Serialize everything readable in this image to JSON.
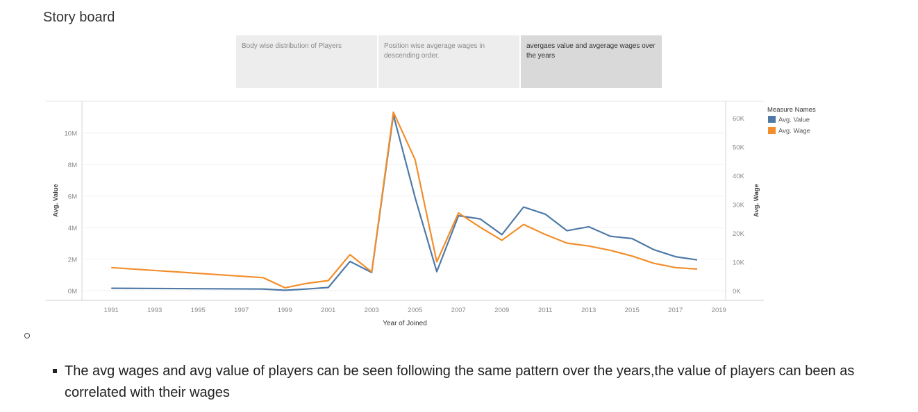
{
  "story": {
    "title": "Story board"
  },
  "tabs": [
    {
      "label": "Body wise distribution of Players",
      "active": false
    },
    {
      "label": "Position wise avgerage wages in descending order.",
      "active": false
    },
    {
      "label": "avergaes value and avgerage wages over the years",
      "active": true
    }
  ],
  "chart_data": {
    "type": "line",
    "xlabel": "Year of Joined",
    "x": [
      1991,
      1998,
      1999,
      2000,
      2001,
      2002,
      2003,
      2004,
      2005,
      2006,
      2007,
      2008,
      2009,
      2010,
      2011,
      2012,
      2013,
      2014,
      2015,
      2016,
      2017,
      2018
    ],
    "x_ticks": [
      "1991",
      "1993",
      "1995",
      "1997",
      "1999",
      "2001",
      "2003",
      "2005",
      "2007",
      "2009",
      "2011",
      "2013",
      "2015",
      "2017",
      "2019"
    ],
    "xlim": [
      1988,
      2020
    ],
    "series": [
      {
        "name": "Avg. Value",
        "axis": "left",
        "color": "#4e79a7",
        "values": [
          150000,
          100000,
          20000,
          100000,
          200000,
          1850000,
          1150000,
          11150000,
          5900000,
          1200000,
          4750000,
          4550000,
          3550000,
          5300000,
          4850000,
          3800000,
          4050000,
          3450000,
          3300000,
          2600000,
          2150000,
          1950000
        ]
      },
      {
        "name": "Avg. Wage",
        "axis": "right",
        "color": "#f28e2b",
        "values": [
          8000,
          4500,
          1000,
          2500,
          3500,
          12500,
          6500,
          62000,
          45500,
          10000,
          27000,
          22000,
          17500,
          23000,
          19500,
          16500,
          15500,
          14000,
          12000,
          9500,
          8000,
          7500
        ]
      }
    ],
    "y_left": {
      "label": "Avg. Value",
      "lim": [
        0,
        11500000
      ],
      "ticks": [
        "0M",
        "2M",
        "4M",
        "6M",
        "8M",
        "10M"
      ]
    },
    "y_right": {
      "label": "Avg. Wage",
      "lim": [
        0,
        63000
      ],
      "ticks": [
        "0K",
        "10K",
        "20K",
        "30K",
        "40K",
        "50K",
        "60K"
      ]
    },
    "legend": {
      "title": "Measure Names",
      "items": [
        "Avg. Value",
        "Avg. Wage"
      ],
      "placement": "right"
    },
    "grid": true
  },
  "note": {
    "text": "The avg wages and avg value of players can be seen following the same pattern over the years,the value of players can been as correlated with their wages"
  }
}
